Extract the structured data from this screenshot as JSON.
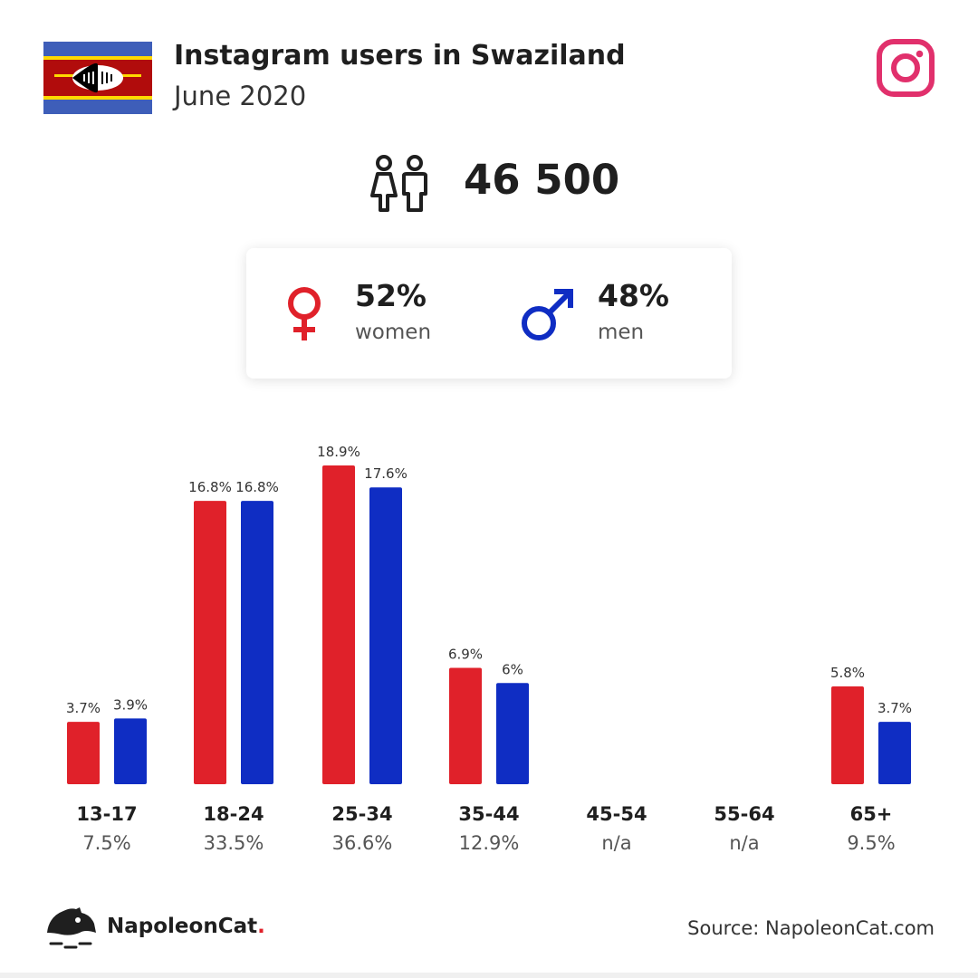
{
  "header": {
    "title": "Instagram users in Swaziland",
    "subtitle": "June 2020"
  },
  "summary": {
    "total_users": "46 500",
    "women_pct": "52%",
    "women_label": "women",
    "men_pct": "48%",
    "men_label": "men"
  },
  "colors": {
    "women": "#e0212a",
    "men": "#0f2dc3",
    "instagram": "#e1306c"
  },
  "icons": {
    "flag": "swaziland-flag-icon",
    "brand": "instagram-icon",
    "people": "people-icon",
    "female": "female-symbol-icon",
    "male": "male-symbol-icon",
    "logo": "napoleoncat-logo-icon"
  },
  "chart_data": {
    "type": "bar",
    "categories": [
      "13-17",
      "18-24",
      "25-34",
      "35-44",
      "45-54",
      "55-64",
      "65+"
    ],
    "category_totals": [
      "7.5%",
      "33.5%",
      "36.6%",
      "12.9%",
      "n/a",
      "n/a",
      "9.5%"
    ],
    "series": [
      {
        "values": [
          3.7,
          16.8,
          18.9,
          6.9,
          null,
          null,
          5.8
        ],
        "labels": [
          "3.7%",
          "16.8%",
          "18.9%",
          "6.9%",
          "",
          "",
          "5.8%"
        ]
      },
      {
        "values": [
          3.9,
          16.8,
          17.6,
          6,
          null,
          null,
          3.7
        ],
        "labels": [
          "3.9%",
          "16.8%",
          "17.6%",
          "6%",
          "",
          "",
          "3.7%"
        ]
      }
    ],
    "ylim": [
      0,
      18.9
    ],
    "grid": false
  },
  "footer": {
    "brand": "NapoleonCat",
    "brand_dot": ".",
    "source": "Source: NapoleonCat.com"
  }
}
